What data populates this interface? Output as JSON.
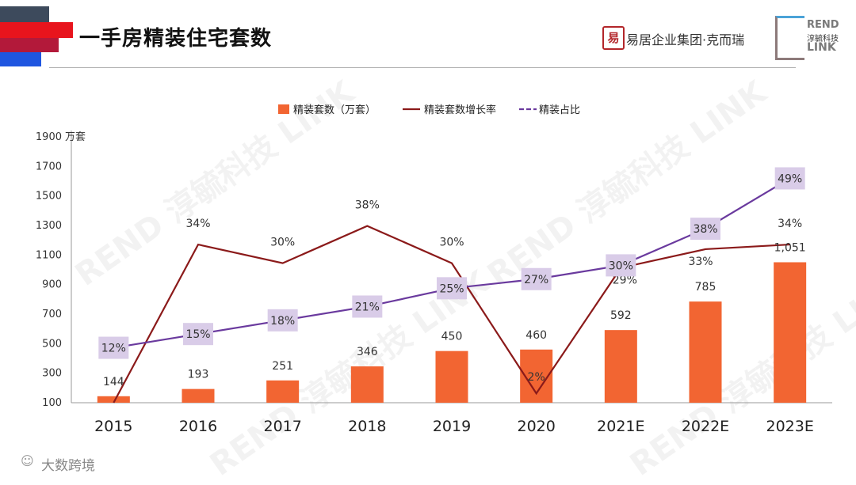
{
  "header": {
    "title": "一手房精装住宅套数",
    "brand": "易居企业集团·克而瑞",
    "seal_char": "易",
    "logo_rend": "REND",
    "logo_sub": "淳毓科技",
    "logo_ink": "LINK"
  },
  "footer": {
    "brand": "大数跨境",
    "icon_glyph": "☺"
  },
  "watermark": {
    "text": "REND 淳毓科技 LINK"
  },
  "colors": {
    "bar": "#f26532",
    "growth_line": "#8b1a1a",
    "share_line": "#6a3a9e",
    "share_label_bg": "#d9cce8"
  },
  "chart_data": {
    "type": "bar",
    "categories": [
      "2015",
      "2016",
      "2017",
      "2018",
      "2019",
      "2020",
      "2021E",
      "2022E",
      "2023E"
    ],
    "y_unit": "万套",
    "ylim": [
      100,
      1900
    ],
    "yticks": [
      100,
      300,
      500,
      700,
      900,
      1100,
      1300,
      1500,
      1700,
      1900
    ],
    "legend_position": "top-center",
    "series": [
      {
        "name": "精装套数（万套）",
        "kind": "bar",
        "values": [
          144,
          193,
          251,
          346,
          450,
          460,
          592,
          785,
          1051
        ],
        "labels": [
          "144",
          "193",
          "251",
          "346",
          "450",
          "460",
          "592",
          "785",
          "1,051"
        ]
      },
      {
        "name": "精装套数增长率",
        "kind": "line",
        "values_pct": [
          null,
          34,
          30,
          38,
          30,
          2,
          29,
          33,
          34
        ],
        "labels": [
          "",
          "34%",
          "30%",
          "38%",
          "30%",
          "2%",
          "29%",
          "33%",
          "34%"
        ]
      },
      {
        "name": "精装占比",
        "kind": "line-dashed-legend",
        "values_pct": [
          12,
          15,
          18,
          21,
          25,
          27,
          30,
          38,
          49
        ],
        "labels": [
          "12%",
          "15%",
          "18%",
          "21%",
          "25%",
          "27%",
          "30%",
          "38%",
          "49%"
        ]
      }
    ]
  }
}
